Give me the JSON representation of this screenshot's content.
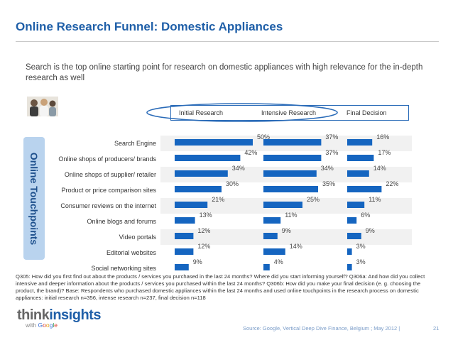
{
  "header": {
    "title": "Online Research Funnel: Domestic Appliances",
    "subtitle": "Search is the top online starting point for research on domestic appliances with high relevance for the in-depth research as well"
  },
  "side_tab": {
    "label": "Online Touchpoints"
  },
  "colors": {
    "bar": "#1565c0",
    "title": "#1f5fa8",
    "stage_outline": "#2a6bb8",
    "tab": "#b9d3ee"
  },
  "chart_data": {
    "type": "bar",
    "orientation": "horizontal",
    "title": "Online Research Funnel: Domestic Appliances",
    "categories": [
      "Search Engine",
      "Online shops of producers/ brands",
      "Online shops of supplier/ retailer",
      "Product or price comparison sites",
      "Consumer reviews on the internet",
      "Online blogs and forums",
      "Video portals",
      "Editorial websites",
      "Social networking sites"
    ],
    "series": [
      {
        "name": "Initial Research",
        "values": [
          50,
          42,
          34,
          30,
          21,
          13,
          12,
          12,
          9
        ]
      },
      {
        "name": "Intensive Research",
        "values": [
          37,
          37,
          34,
          35,
          25,
          11,
          9,
          14,
          4
        ]
      },
      {
        "name": "Final Decision",
        "values": [
          16,
          17,
          14,
          22,
          11,
          6,
          9,
          3,
          3
        ]
      }
    ],
    "unit": "%",
    "xlim": [
      0,
      50
    ],
    "legend": "top"
  },
  "footnote": "Q305: How did you first find out about the products / services you purchased in the last 24 months? Where did you start informing yourself? Q306a: And how did you collect intensive and deeper information about the products / services you purchased within the last 24 months? Q306b: How did you make your final decision (e. g. choosing the product, the brand)? Base: Respondents who purchased domestic appliances within the last 24 months and used online touchpoints in the research process on domestic appliances: initial research n=356, intense research n=237, final decision n=118",
  "branding": {
    "think": "think",
    "insights": "insights",
    "with": "with",
    "google": [
      "G",
      "o",
      "o",
      "g",
      "l",
      "e"
    ]
  },
  "source": "Source: Google, Vertical Deep Dive Finance, Belgium ; May 2012 |",
  "page_number": "21"
}
